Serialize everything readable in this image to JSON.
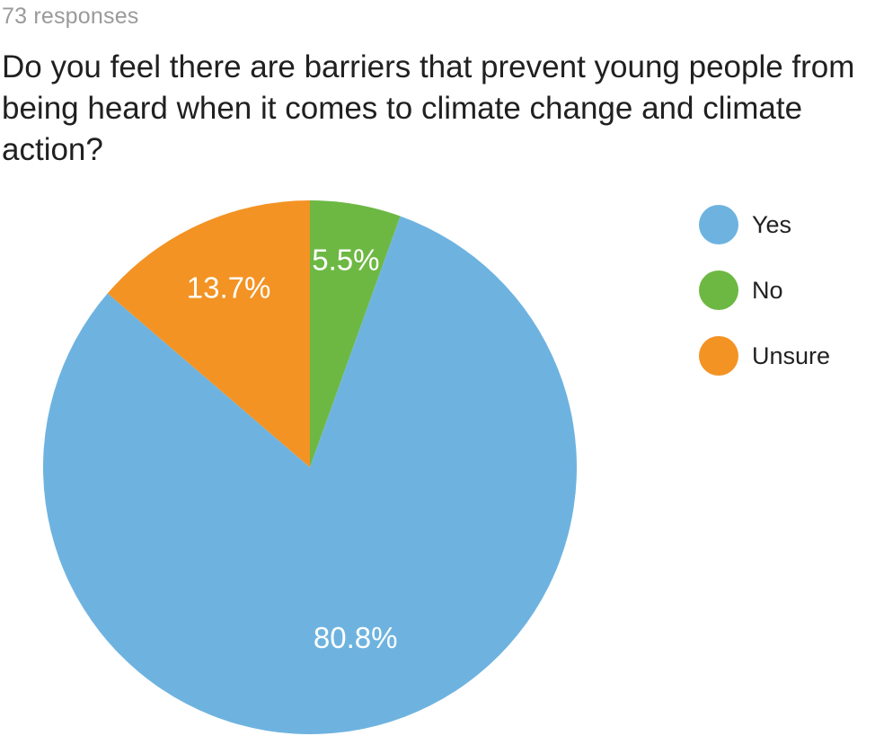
{
  "header": {
    "responses_text": "73 responses",
    "question": "Do you feel there are barriers that prevent young people from being heard when it comes to climate change and climate action?"
  },
  "chart_data": {
    "type": "pie",
    "title": "Do you feel there are barriers that prevent young people from being heard when it comes to climate change and climate action?",
    "subtitle": "73 responses",
    "start": "top",
    "direction": "clockwise",
    "legend_position": "right",
    "slices": [
      {
        "label": "No",
        "value": 5.5,
        "display": "5.5%",
        "color": "#6db843"
      },
      {
        "label": "Yes",
        "value": 80.8,
        "display": "80.8%",
        "color": "#6eb3e0"
      },
      {
        "label": "Unsure",
        "value": 13.7,
        "display": "13.7%",
        "color": "#f39324"
      }
    ],
    "legend": [
      {
        "label": "Yes",
        "color": "#6eb3e0"
      },
      {
        "label": "No",
        "color": "#6db843"
      },
      {
        "label": "Unsure",
        "color": "#f39324"
      }
    ]
  }
}
